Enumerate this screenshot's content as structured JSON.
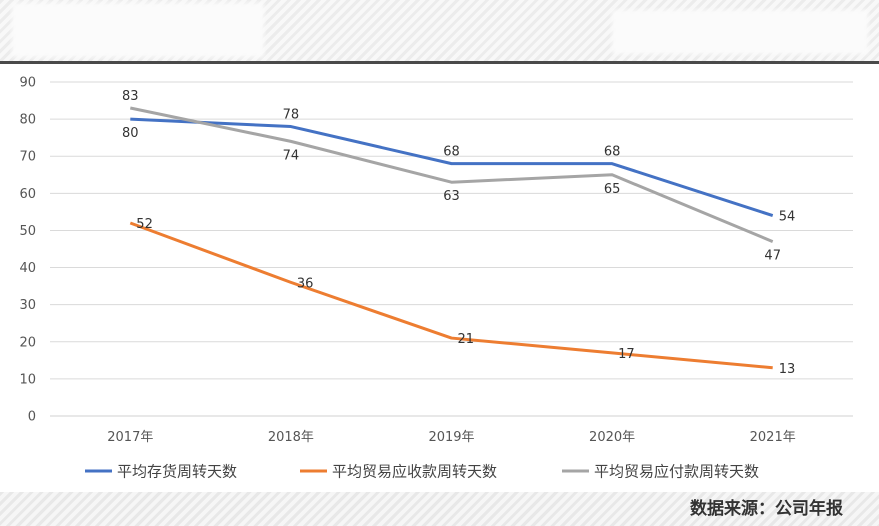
{
  "colors": {
    "inventory": "#4472c4",
    "receivable": "#ed7d31",
    "payable": "#a5a5a5"
  },
  "source_text": "数据来源：公司年报",
  "chart_data": {
    "type": "line",
    "categories": [
      "2017年",
      "2018年",
      "2019年",
      "2020年",
      "2021年"
    ],
    "ylim": [
      0,
      90
    ],
    "yticks": [
      0,
      10,
      20,
      30,
      40,
      50,
      60,
      70,
      80,
      90
    ],
    "grid": true,
    "legend": "bottom",
    "series": [
      {
        "key": "inventory",
        "name": "平均存货周转天数",
        "values": [
          80,
          78,
          68,
          68,
          54
        ],
        "label_pos": [
          "below",
          "above",
          "above",
          "above",
          "right"
        ]
      },
      {
        "key": "receivable",
        "name": "平均贸易应收款周转天数",
        "values": [
          52,
          36,
          21,
          17,
          13
        ],
        "label_pos": [
          "right",
          "right",
          "right",
          "right",
          "right"
        ]
      },
      {
        "key": "payable",
        "name": "平均贸易应付款周转天数",
        "values": [
          83,
          74,
          63,
          65,
          47
        ],
        "label_pos": [
          "above",
          "below",
          "below",
          "below",
          "below"
        ]
      }
    ]
  }
}
